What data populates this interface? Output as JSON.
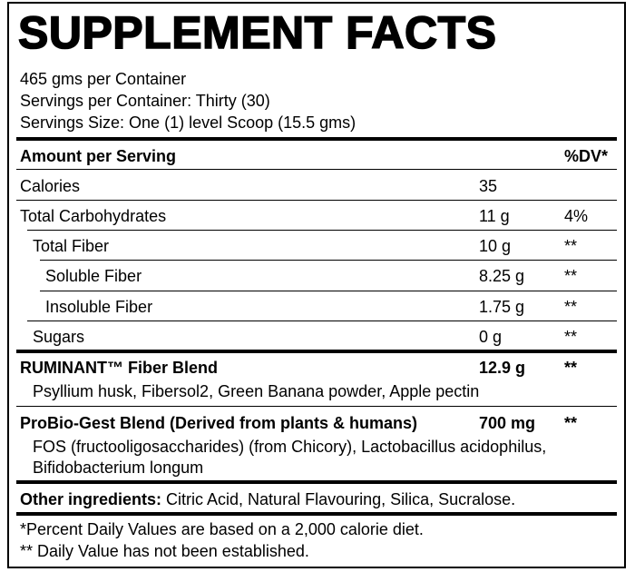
{
  "title": "SUPPLEMENT FACTS",
  "serving_info": [
    "465 gms per Container",
    "Servings per Container: Thirty (30)",
    "Servings Size: One (1) level Scoop (15.5 gms)"
  ],
  "header": {
    "amount": "Amount per Serving",
    "dv": "%DV*"
  },
  "rows": [
    {
      "name": "Calories",
      "amount": "35"
    },
    {
      "name": "Total Carbohydrates",
      "amount": "11 g",
      "dv": "4%"
    },
    {
      "name": "Total Fiber",
      "amount": "10 g",
      "dv": "**"
    },
    {
      "name": "Soluble Fiber",
      "amount": "8.25 g",
      "dv": "**"
    },
    {
      "name": "Insoluble Fiber",
      "amount": "1.75 g",
      "dv": "**"
    },
    {
      "name": "Sugars",
      "amount": "0 g",
      "dv": "**"
    }
  ],
  "blends": [
    {
      "name": "RUMINANT™ Fiber Blend",
      "amount": "12.9 g",
      "dv": "**",
      "ingredients": [
        "Psyllium husk, Fibersol2, Green Banana powder, Apple pectin"
      ]
    },
    {
      "name": "ProBio-Gest Blend (Derived from plants & humans)",
      "amount": "700 mg",
      "dv": "**",
      "ingredients": [
        "FOS (fructooligosaccharides) (from Chicory), Lactobacillus acidophilus,",
        "Bifidobacterium longum"
      ]
    }
  ],
  "other": {
    "label": "Other ingredients:",
    "text": "Citric Acid, Natural Flavouring, Silica, Sucralose."
  },
  "footnotes": [
    "*Percent Daily Values are based on a 2,000 calorie diet.",
    "** Daily Value has not been established."
  ]
}
